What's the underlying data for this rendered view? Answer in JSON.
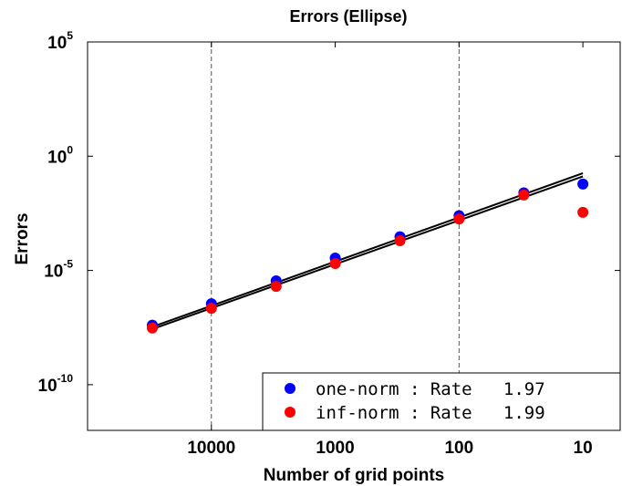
{
  "chart_data": {
    "type": "scatter",
    "title": "Errors (Ellipse)",
    "xlabel": "Number of grid points",
    "ylabel": "Errors",
    "x_scale": "log",
    "x_reversed": true,
    "y_scale": "log",
    "xlim": [
      100000,
      5
    ],
    "ylim_exponents": [
      -12,
      5
    ],
    "x_ticks": [
      "10000",
      "1000",
      "100",
      "10"
    ],
    "x_tick_values": [
      10000,
      1000,
      100,
      10
    ],
    "y_ticks": [
      {
        "base": "10",
        "exp": "5"
      },
      {
        "base": "10",
        "exp": "0"
      },
      {
        "base": "10",
        "exp": "-5"
      },
      {
        "base": "10",
        "exp": "-10"
      }
    ],
    "y_tick_exponents": [
      5,
      0,
      -5,
      -10
    ],
    "grid": "vertical dashed at 10000 and 100",
    "legend_position": "bottom-right",
    "series": [
      {
        "name": "one-norm : Rate   1.97",
        "color": "#0000ff",
        "x": [
          30000,
          10000,
          3000,
          1000,
          300,
          100,
          30,
          10
        ],
        "y": [
          4e-08,
          3.5e-07,
          3.5e-06,
          3.5e-05,
          0.0003,
          0.0025,
          0.025,
          0.06
        ]
      },
      {
        "name": "inf-norm : Rate   1.99",
        "color": "#ff0000",
        "x": [
          30000,
          10000,
          3000,
          1000,
          300,
          100,
          30,
          10
        ],
        "y": [
          3e-08,
          2.2e-07,
          2e-06,
          2e-05,
          0.0002,
          0.0018,
          0.02,
          0.0035
        ]
      }
    ],
    "fit_lines": [
      {
        "series": "one-norm",
        "color": "#000000",
        "x": [
          30000,
          10
        ],
        "y": [
          3.4e-08,
          0.18
        ]
      },
      {
        "series": "inf-norm",
        "color": "#000000",
        "x": [
          30000,
          10
        ],
        "y": [
          2.7e-08,
          0.13
        ]
      }
    ]
  }
}
